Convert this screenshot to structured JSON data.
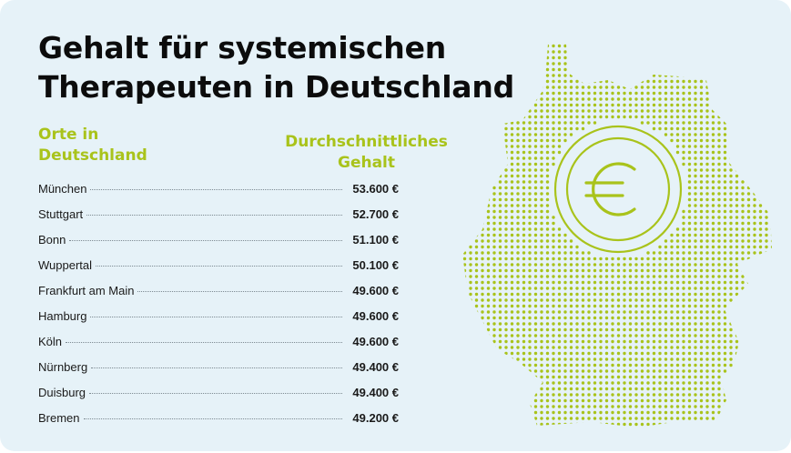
{
  "title": {
    "line1": "Gehalt für systemischen",
    "line2": "Therapeuten in Deutschland"
  },
  "columns": {
    "city_line1": "Orte in",
    "city_line2": "Deutschland",
    "salary_line1": "Durchschnittliches",
    "salary_line2": "Gehalt"
  },
  "rows": [
    {
      "city": "München",
      "salary": "53.600 €"
    },
    {
      "city": "Stuttgart",
      "salary": "52.700 €"
    },
    {
      "city": "Bonn",
      "salary": "51.100 €"
    },
    {
      "city": "Wuppertal",
      "salary": "50.100 €"
    },
    {
      "city": "Frankfurt am Main",
      "salary": "49.600 €"
    },
    {
      "city": "Hamburg",
      "salary": "49.600 €"
    },
    {
      "city": "Köln",
      "salary": "49.600 €"
    },
    {
      "city": "Nürnberg",
      "salary": "49.400 €"
    },
    {
      "city": "Duisburg",
      "salary": "49.400 €"
    },
    {
      "city": "Bremen",
      "salary": "49.200 €"
    }
  ],
  "map": {
    "icon": "euro-coin-icon",
    "dot_color": "#a9c31b",
    "coin_color": "#a9c31b"
  },
  "colors": {
    "background": "#e6f2f8",
    "accent": "#a9c31b",
    "text": "#0c0c0c"
  }
}
